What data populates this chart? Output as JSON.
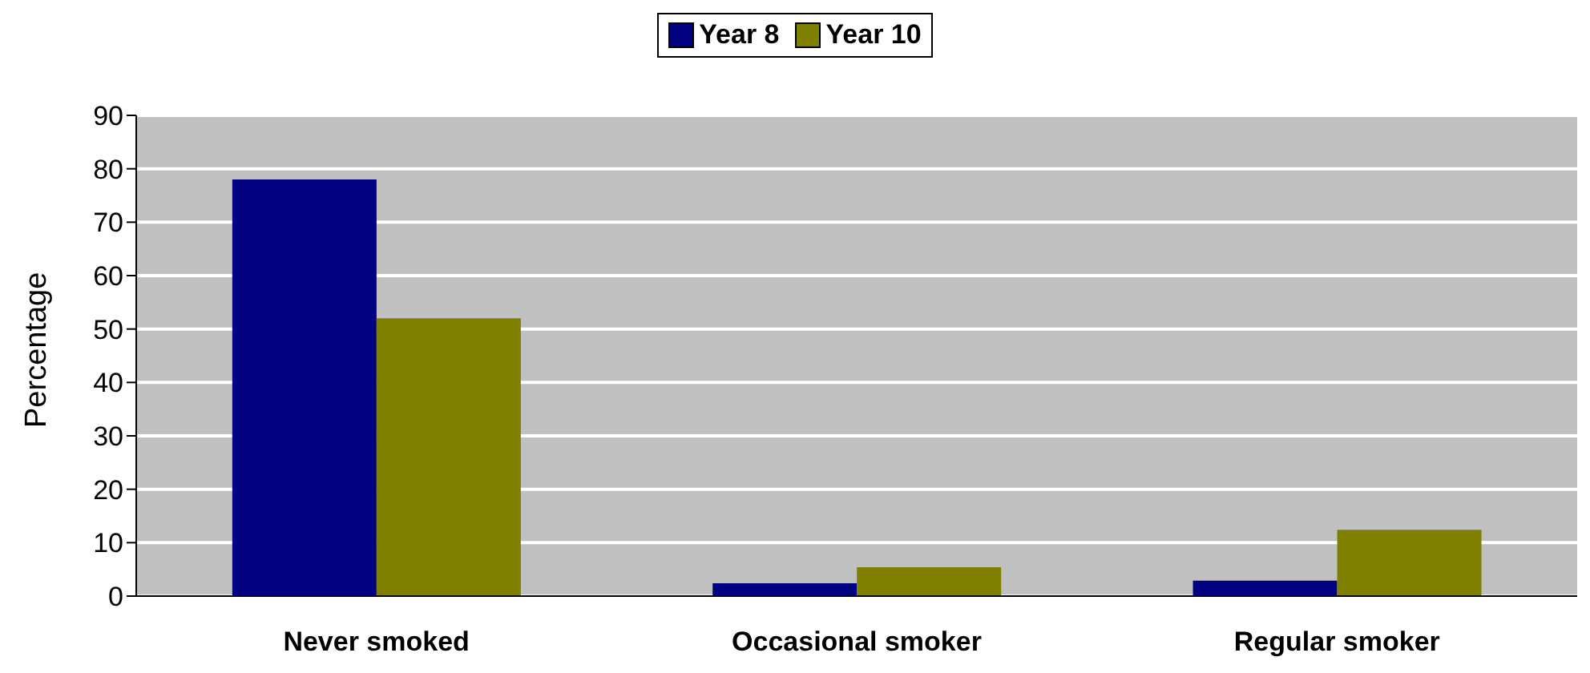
{
  "chart_data": {
    "type": "bar",
    "ylabel": "Percentage",
    "categories": [
      "Never smoked",
      "Occasional smoker",
      "Regular smoker"
    ],
    "series": [
      {
        "name": "Year 8",
        "color": "#000080",
        "values": [
          78,
          2.4,
          2.9
        ]
      },
      {
        "name": "Year 10",
        "color": "#808000",
        "values": [
          52,
          5.4,
          12.4
        ]
      }
    ],
    "ylim": [
      0,
      90
    ],
    "yticks": [
      0,
      10,
      20,
      30,
      40,
      50,
      60,
      70,
      80,
      90
    ],
    "grid": "y",
    "legend": "top"
  }
}
